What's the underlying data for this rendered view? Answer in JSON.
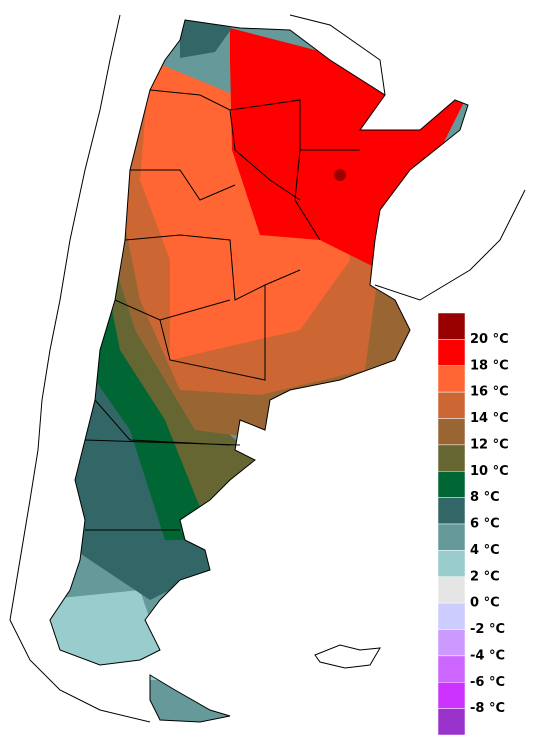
{
  "legend": {
    "labels": [
      "20 °C",
      "18 °C",
      "16 °C",
      "14 °C",
      "12 °C",
      "10 °C",
      "8 °C",
      "6 °C",
      "4 °C",
      "2 °C",
      "0 °C",
      "-2 °C",
      "-4 °C",
      "-6 °C",
      "-8 °C"
    ],
    "colors": [
      "#990000",
      "#ff0000",
      "#ff6633",
      "#cc6633",
      "#996633",
      "#666633",
      "#006633",
      "#336666",
      "#669999",
      "#99cccc",
      "#e5e5e5",
      "#ccccff",
      "#cc99ff",
      "#cc66ff",
      "#cc33ff",
      "#9933cc"
    ]
  }
}
